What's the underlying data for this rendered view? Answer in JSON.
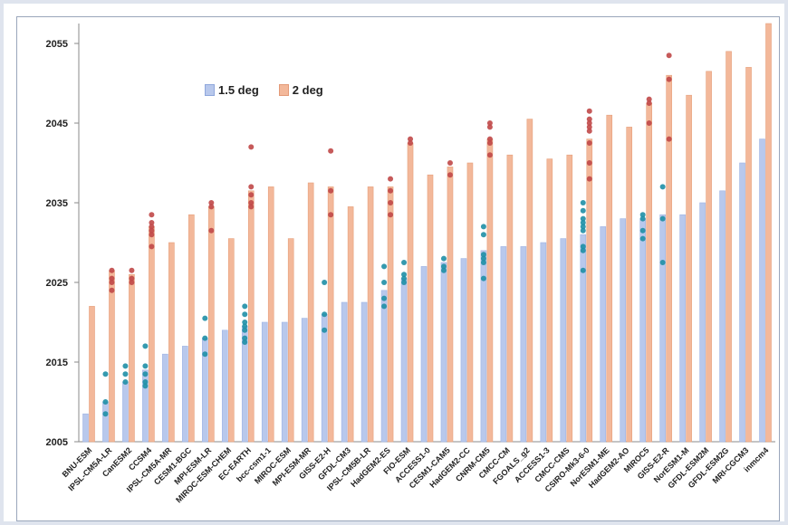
{
  "chart_data": {
    "type": "bar",
    "categories": [
      "BNU-ESM",
      "IPSL-CM5A-LR",
      "CanESM2",
      "CCSM4",
      "IPSL-CM5A-MR",
      "CESM1-BGC",
      "MPI-ESM-LR",
      "MIROC-ESM-CHEM",
      "EC-EARTH",
      "bcc-csm1-1",
      "MIROC-ESM",
      "MPI-ESM-MR",
      "GISS-E2-H",
      "GFDL-CM3",
      "IPSL-CM5B-LR",
      "HadGEM2-ES",
      "FIO-ESM",
      "ACCESS1-0",
      "CESM1-CAM5",
      "HadGEM2-CC",
      "CNRM-CM5",
      "CMCC-CM",
      "FGOALS_g2",
      "ACCESS1-3",
      "CMCC-CMS",
      "CSIRO-Mk3-6-0",
      "NorESM1-ME",
      "HadGEM2-AO",
      "MIROC5",
      "GISS-E2-R",
      "NorESM1-M",
      "GFDL-ESM2M",
      "GFDL-ESM2G",
      "MRI-CGCM3",
      "inmcm4"
    ],
    "series": [
      {
        "name": "1.5 deg",
        "color": "#b8c8ec",
        "values": [
          2008.5,
          2010,
          2012.5,
          2014,
          2016,
          2017,
          2018,
          2019,
          2019.5,
          2020,
          2020,
          2020.5,
          2021,
          2022.5,
          2022.5,
          2024,
          2025.5,
          2027,
          2027.5,
          2028,
          2029,
          2029.5,
          2029.5,
          2030,
          2030.5,
          2031,
          2032,
          2033,
          2033,
          2033.5,
          2033.5,
          2035,
          2036.5,
          2040,
          2043
        ]
      },
      {
        "name": "2 deg",
        "color": "#f3b89a",
        "values": [
          2022,
          2026.5,
          2026,
          2032,
          2030,
          2033.5,
          2034.5,
          2030.5,
          2036.5,
          2037,
          2030.5,
          2037.5,
          2037,
          2034.5,
          2037,
          2037,
          2042.5,
          2038.5,
          2039.5,
          2040,
          2043,
          2041,
          2045.5,
          2040.5,
          2041,
          2043,
          2046,
          2044.5,
          2047.5,
          2051,
          2048.5,
          2051.5,
          2054,
          2052,
          2057.5
        ]
      }
    ],
    "dots_1_5": [
      [],
      [
        2013.5,
        2010,
        2008.5
      ],
      [
        2014.5,
        2013.5,
        2012.5
      ],
      [
        2017,
        2014.5,
        2013.5,
        2012.5,
        2012
      ],
      [],
      [],
      [
        2020.5,
        2018,
        2016
      ],
      [],
      [
        2022,
        2021,
        2020,
        2019.5,
        2019,
        2018,
        2017.5
      ],
      [],
      [],
      [],
      [
        2025,
        2021,
        2019
      ],
      [],
      [],
      [
        2027,
        2025,
        2023,
        2022
      ],
      [
        2027.5,
        2026,
        2025.5,
        2025
      ],
      [],
      [
        2028,
        2027,
        2026.5
      ],
      [],
      [
        2032,
        2031,
        2028.5,
        2028,
        2027.5,
        2025.5
      ],
      [],
      [],
      [],
      [],
      [
        2035,
        2034,
        2033,
        2032.5,
        2032,
        2031.5,
        2029.5,
        2029,
        2026.5
      ],
      [],
      [],
      [
        2033.5,
        2033,
        2031.5,
        2030.5
      ],
      [
        2037,
        2033,
        2027.5
      ],
      [],
      [],
      [],
      [],
      []
    ],
    "dots_2": [
      [],
      [
        2026.5,
        2025.5,
        2025,
        2024
      ],
      [
        2026.5,
        2025.5,
        2025
      ],
      [
        2033.5,
        2032.5,
        2032,
        2031.5,
        2031,
        2029.5
      ],
      [],
      [],
      [
        2035,
        2034.5,
        2031.5
      ],
      [],
      [
        2042,
        2037,
        2036,
        2035,
        2034.5
      ],
      [],
      [],
      [],
      [
        2041.5,
        2036.5,
        2033.5
      ],
      [],
      [],
      [
        2038,
        2036.5,
        2035,
        2033.5
      ],
      [
        2043,
        2042.5
      ],
      [],
      [
        2040,
        2038.5
      ],
      [],
      [
        2045,
        2044.5,
        2043,
        2042.5,
        2041
      ],
      [],
      [],
      [],
      [],
      [
        2046.5,
        2045.5,
        2045,
        2044.5,
        2044,
        2042.5,
        2040,
        2038
      ],
      [],
      [],
      [
        2048,
        2047.5,
        2045
      ],
      [
        2053.5,
        2050.5,
        2043
      ],
      [],
      [],
      [],
      [],
      []
    ],
    "dot_colors": {
      "1.5 deg": "#1f8fa6",
      "2 deg": "#c04848"
    },
    "y_ticks": [
      2005,
      2015,
      2025,
      2035,
      2045,
      2055
    ],
    "ylim": [
      2005,
      2057.5
    ],
    "legend": {
      "placement": "top-left",
      "labels": [
        "1.5 deg",
        "2 deg"
      ]
    },
    "grid": false,
    "xlabel": "",
    "ylabel": "",
    "title": ""
  }
}
